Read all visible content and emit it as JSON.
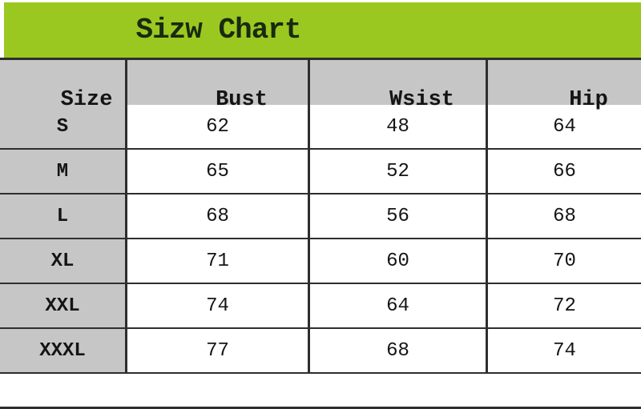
{
  "title": "Sizw Chart",
  "colors": {
    "banner": "#9bc820",
    "header_bg": "#c6c6c6",
    "border": "#2e2e2e",
    "text": "#141414"
  },
  "chart_data": {
    "type": "table",
    "title": "Sizw Chart",
    "columns": [
      "Size",
      "Bust",
      "Wsist",
      "Hip"
    ],
    "rows": [
      [
        "S",
        62,
        48,
        64
      ],
      [
        "M",
        65,
        52,
        66
      ],
      [
        "L",
        68,
        56,
        68
      ],
      [
        "XL",
        71,
        60,
        70
      ],
      [
        "XXL",
        74,
        64,
        72
      ],
      [
        "XXXL",
        77,
        68,
        74
      ]
    ]
  },
  "table": {
    "columns": [
      "Size",
      "Bust",
      "Wsist",
      "Hip"
    ],
    "rows": [
      {
        "cells": [
          "S",
          "62",
          "48",
          "64"
        ]
      },
      {
        "cells": [
          "M",
          "65",
          "52",
          "66"
        ]
      },
      {
        "cells": [
          "L",
          "68",
          "56",
          "68"
        ]
      },
      {
        "cells": [
          "XL",
          "71",
          "60",
          "70"
        ]
      },
      {
        "cells": [
          "XXL",
          "74",
          "64",
          "72"
        ]
      },
      {
        "cells": [
          "XXXL",
          "77",
          "68",
          "74"
        ]
      }
    ]
  }
}
